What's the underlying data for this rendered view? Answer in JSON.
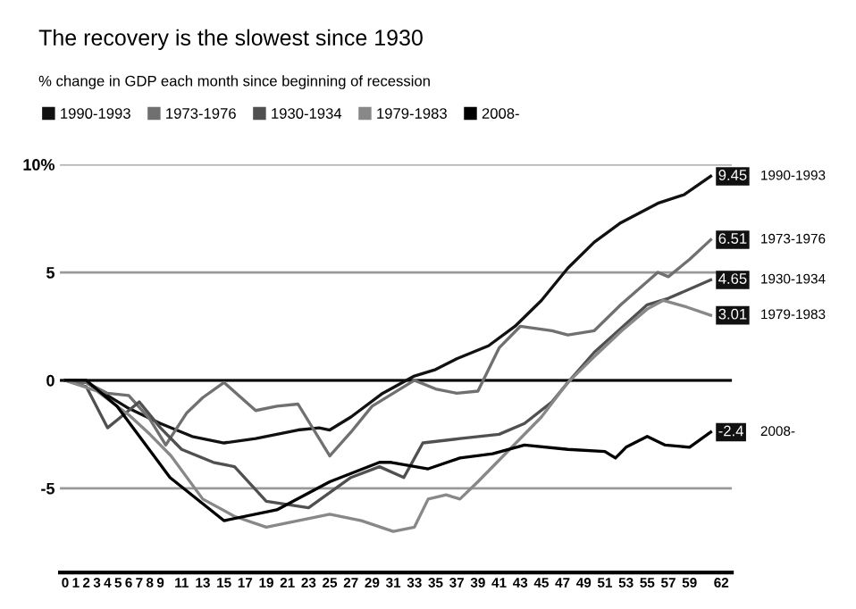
{
  "chart_data": {
    "type": "line",
    "title": "The recovery is the slowest since 1930",
    "subtitle": "% change in GDP each month since beginning of recession",
    "xticks": [
      0,
      1,
      2,
      3,
      4,
      5,
      6,
      7,
      8,
      9,
      11,
      13,
      15,
      17,
      19,
      21,
      23,
      25,
      27,
      29,
      31,
      33,
      35,
      37,
      39,
      41,
      43,
      45,
      47,
      49,
      51,
      53,
      55,
      57,
      59,
      62
    ],
    "xlim": [
      -0.5,
      63
    ],
    "ylim": [
      -8.9,
      10
    ],
    "yticks": [
      {
        "value": -5,
        "label": "-5"
      },
      0,
      5,
      {
        "value": 10,
        "label": "10%"
      }
    ],
    "grid": "y",
    "legend": "top",
    "ref_lines": [
      {
        "axis": "y",
        "value": 0,
        "color": "#000000"
      }
    ],
    "series": [
      {
        "name": "1990-1993",
        "color": "#111111",
        "x": [
          0,
          2,
          4,
          6,
          9,
          12,
          15,
          18,
          20,
          22,
          24,
          25,
          27,
          30,
          33,
          35,
          37,
          40,
          42.5,
          45,
          47.5,
          50,
          52.5,
          56,
          58.5,
          61
        ],
        "values": [
          0,
          -0.1,
          -0.7,
          -1.3,
          -2.0,
          -2.6,
          -2.9,
          -2.7,
          -2.5,
          -2.3,
          -2.2,
          -2.3,
          -1.7,
          -0.6,
          0.2,
          0.5,
          1.0,
          1.6,
          2.5,
          3.7,
          5.2,
          6.4,
          7.3,
          8.2,
          8.6,
          9.45
        ],
        "value_labels": [
          null,
          null,
          null,
          null,
          null,
          null,
          null,
          null,
          null,
          null,
          null,
          null,
          null,
          null,
          null,
          null,
          null,
          null,
          null,
          null,
          null,
          null,
          null,
          null,
          null,
          "9.45"
        ]
      },
      {
        "name": "1973-1976",
        "color": "#707070",
        "x": [
          0,
          2,
          4,
          6,
          8,
          9.5,
          11.5,
          13,
          15,
          18,
          20,
          22,
          25,
          27,
          29,
          31,
          33,
          35,
          37,
          39,
          41,
          43,
          46,
          47.5,
          50,
          52.5,
          56,
          57,
          59,
          61
        ],
        "values": [
          0,
          -0.1,
          -0.6,
          -0.7,
          -1.8,
          -3.0,
          -1.5,
          -0.8,
          -0.1,
          -1.4,
          -1.2,
          -1.1,
          -3.5,
          -2.4,
          -1.2,
          -0.6,
          0.0,
          -0.4,
          -0.6,
          -0.5,
          1.5,
          2.5,
          2.3,
          2.1,
          2.3,
          3.5,
          5.0,
          4.8,
          5.6,
          6.51
        ],
        "value_labels": [
          null,
          null,
          null,
          null,
          null,
          null,
          null,
          null,
          null,
          null,
          null,
          null,
          null,
          null,
          null,
          null,
          null,
          null,
          null,
          null,
          null,
          null,
          null,
          null,
          null,
          null,
          null,
          null,
          null,
          "6.51"
        ]
      },
      {
        "name": "1930-1934",
        "color": "#505050",
        "x": [
          0,
          2,
          4,
          5,
          7,
          9,
          11,
          14,
          16,
          19,
          23,
          27,
          29.7,
          32,
          33.8,
          37.3,
          41,
          43.4,
          46,
          47.5,
          50,
          55,
          57,
          61
        ],
        "values": [
          0,
          -0.3,
          -2.2,
          -1.8,
          -1.0,
          -2.2,
          -3.2,
          -3.8,
          -4.0,
          -5.6,
          -5.9,
          -4.5,
          -4.0,
          -4.5,
          -2.9,
          -2.7,
          -2.5,
          -2.0,
          -1.0,
          -0.1,
          1.3,
          3.5,
          3.8,
          4.65
        ],
        "value_labels": [
          null,
          null,
          null,
          null,
          null,
          null,
          null,
          null,
          null,
          null,
          null,
          null,
          null,
          null,
          null,
          null,
          null,
          null,
          null,
          null,
          null,
          null,
          null,
          "4.65"
        ]
      },
      {
        "name": "1979-1983",
        "color": "#888888",
        "x": [
          0,
          3,
          6,
          8,
          10,
          13,
          16,
          19,
          22,
          25,
          28,
          31,
          33,
          34.3,
          36,
          37.3,
          39,
          41.4,
          45,
          47.5,
          50,
          52.6,
          55,
          56.5,
          58.7,
          61
        ],
        "values": [
          0,
          -0.5,
          -1.6,
          -2.5,
          -3.5,
          -5.5,
          -6.3,
          -6.8,
          -6.5,
          -6.2,
          -6.5,
          -7.0,
          -6.8,
          -5.5,
          -5.3,
          -5.5,
          -4.7,
          -3.5,
          -1.7,
          -0.1,
          1.1,
          2.3,
          3.3,
          3.7,
          3.4,
          3.01
        ],
        "value_labels": [
          null,
          null,
          null,
          null,
          null,
          null,
          null,
          null,
          null,
          null,
          null,
          null,
          null,
          null,
          null,
          null,
          null,
          null,
          null,
          null,
          null,
          null,
          null,
          null,
          null,
          "3.01"
        ]
      },
      {
        "name": "2008-",
        "color": "#000000",
        "x": [
          0,
          2,
          4.9,
          9.9,
          15,
          20,
          25,
          29.7,
          30.8,
          34.3,
          37.3,
          40.4,
          43.4,
          47.5,
          51,
          52,
          53,
          55,
          56.7,
          59,
          61
        ],
        "values": [
          0,
          0,
          -1.2,
          -4.5,
          -6.5,
          -6.0,
          -4.7,
          -3.8,
          -3.8,
          -4.1,
          -3.6,
          -3.4,
          -3.0,
          -3.2,
          -3.3,
          -3.6,
          -3.1,
          -2.6,
          -3.0,
          -3.1,
          -2.4
        ],
        "value_labels": [
          null,
          null,
          null,
          null,
          null,
          null,
          null,
          null,
          null,
          null,
          null,
          null,
          null,
          null,
          null,
          null,
          null,
          null,
          null,
          null,
          "-2.4"
        ]
      }
    ]
  }
}
